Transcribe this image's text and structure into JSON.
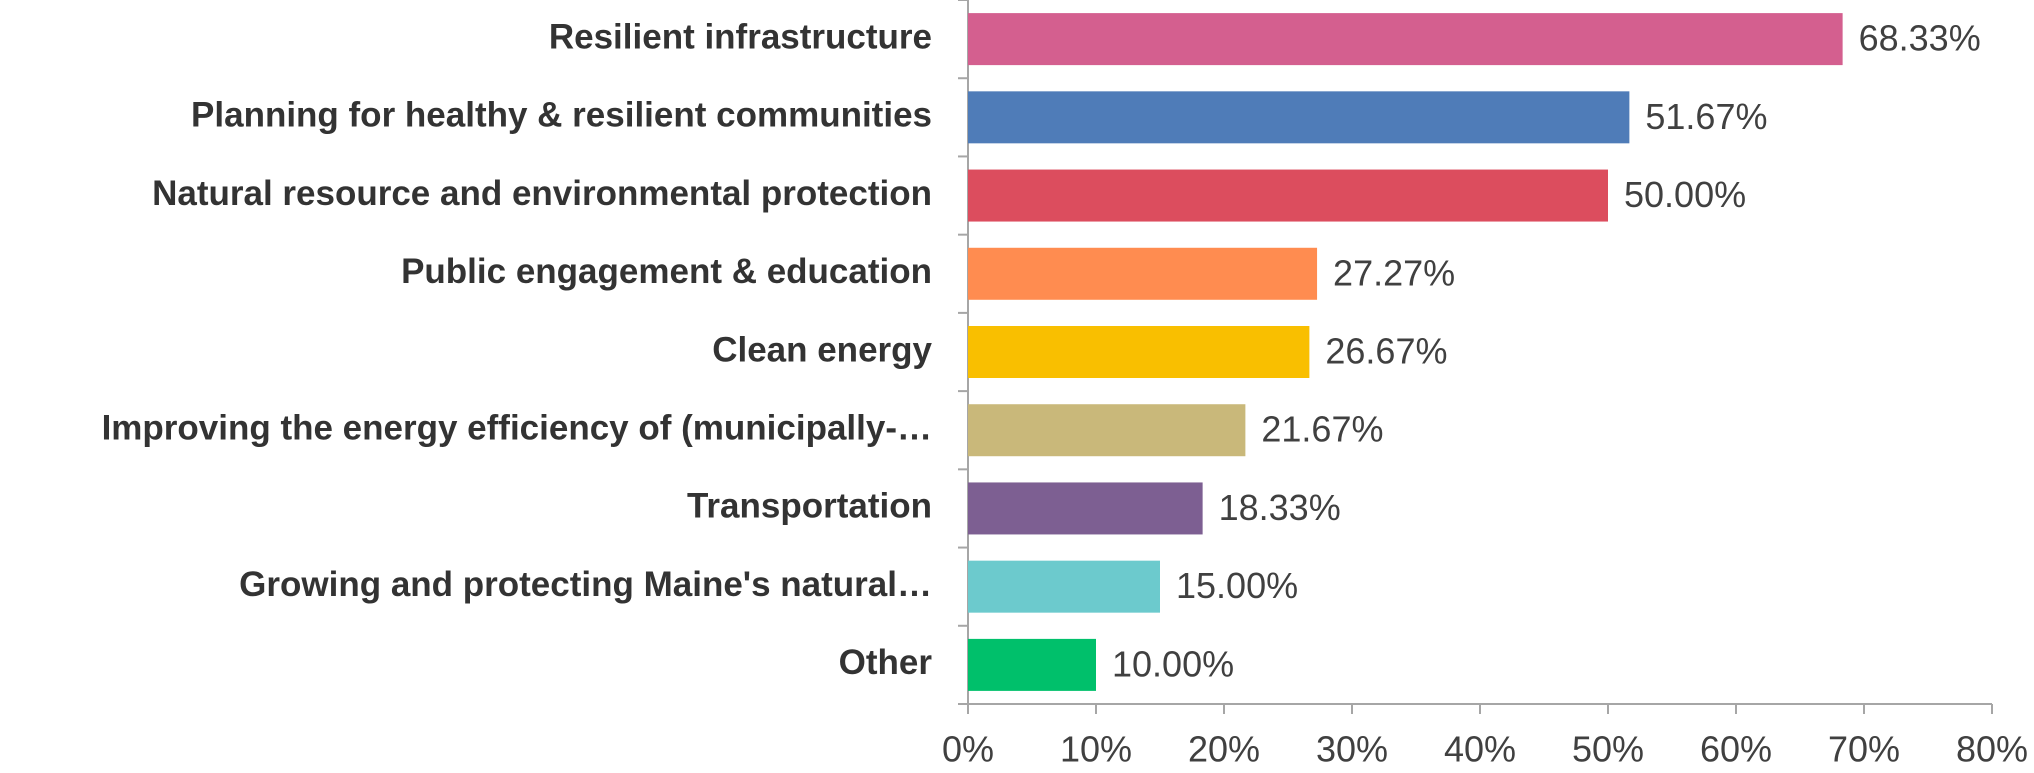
{
  "chart_data": {
    "type": "bar",
    "orientation": "horizontal",
    "categories": [
      "Resilient infrastructure",
      "Planning for healthy & resilient communities",
      "Natural resource and environmental protection",
      "Public engagement & education",
      "Clean energy",
      "Improving the energy efficiency of (municipally-…",
      "Transportation",
      "Growing and protecting Maine's natural…",
      "Other"
    ],
    "values": [
      68.33,
      51.67,
      50.0,
      27.27,
      26.67,
      21.67,
      18.33,
      15.0,
      10.0
    ],
    "value_labels": [
      "68.33%",
      "51.67%",
      "50.00%",
      "27.27%",
      "26.67%",
      "21.67%",
      "18.33%",
      "15.00%",
      "10.00%"
    ],
    "colors": [
      "#d45f8f",
      "#4f7cb8",
      "#dc4d5e",
      "#ff8c50",
      "#f9bf00",
      "#c9b87a",
      "#7d5f92",
      "#6ccacd",
      "#00c06b"
    ],
    "xlim": [
      0,
      80
    ],
    "xticks": [
      {
        "value": 0,
        "label": "0%"
      },
      {
        "value": 10,
        "label": "10%"
      },
      {
        "value": 20,
        "label": "20%"
      },
      {
        "value": 30,
        "label": "30%"
      },
      {
        "value": 40,
        "label": "40%"
      },
      {
        "value": 50,
        "label": "50%"
      },
      {
        "value": 60,
        "label": "60%"
      },
      {
        "value": 70,
        "label": "70%"
      },
      {
        "value": 80,
        "label": "80%"
      }
    ],
    "grid": false
  }
}
